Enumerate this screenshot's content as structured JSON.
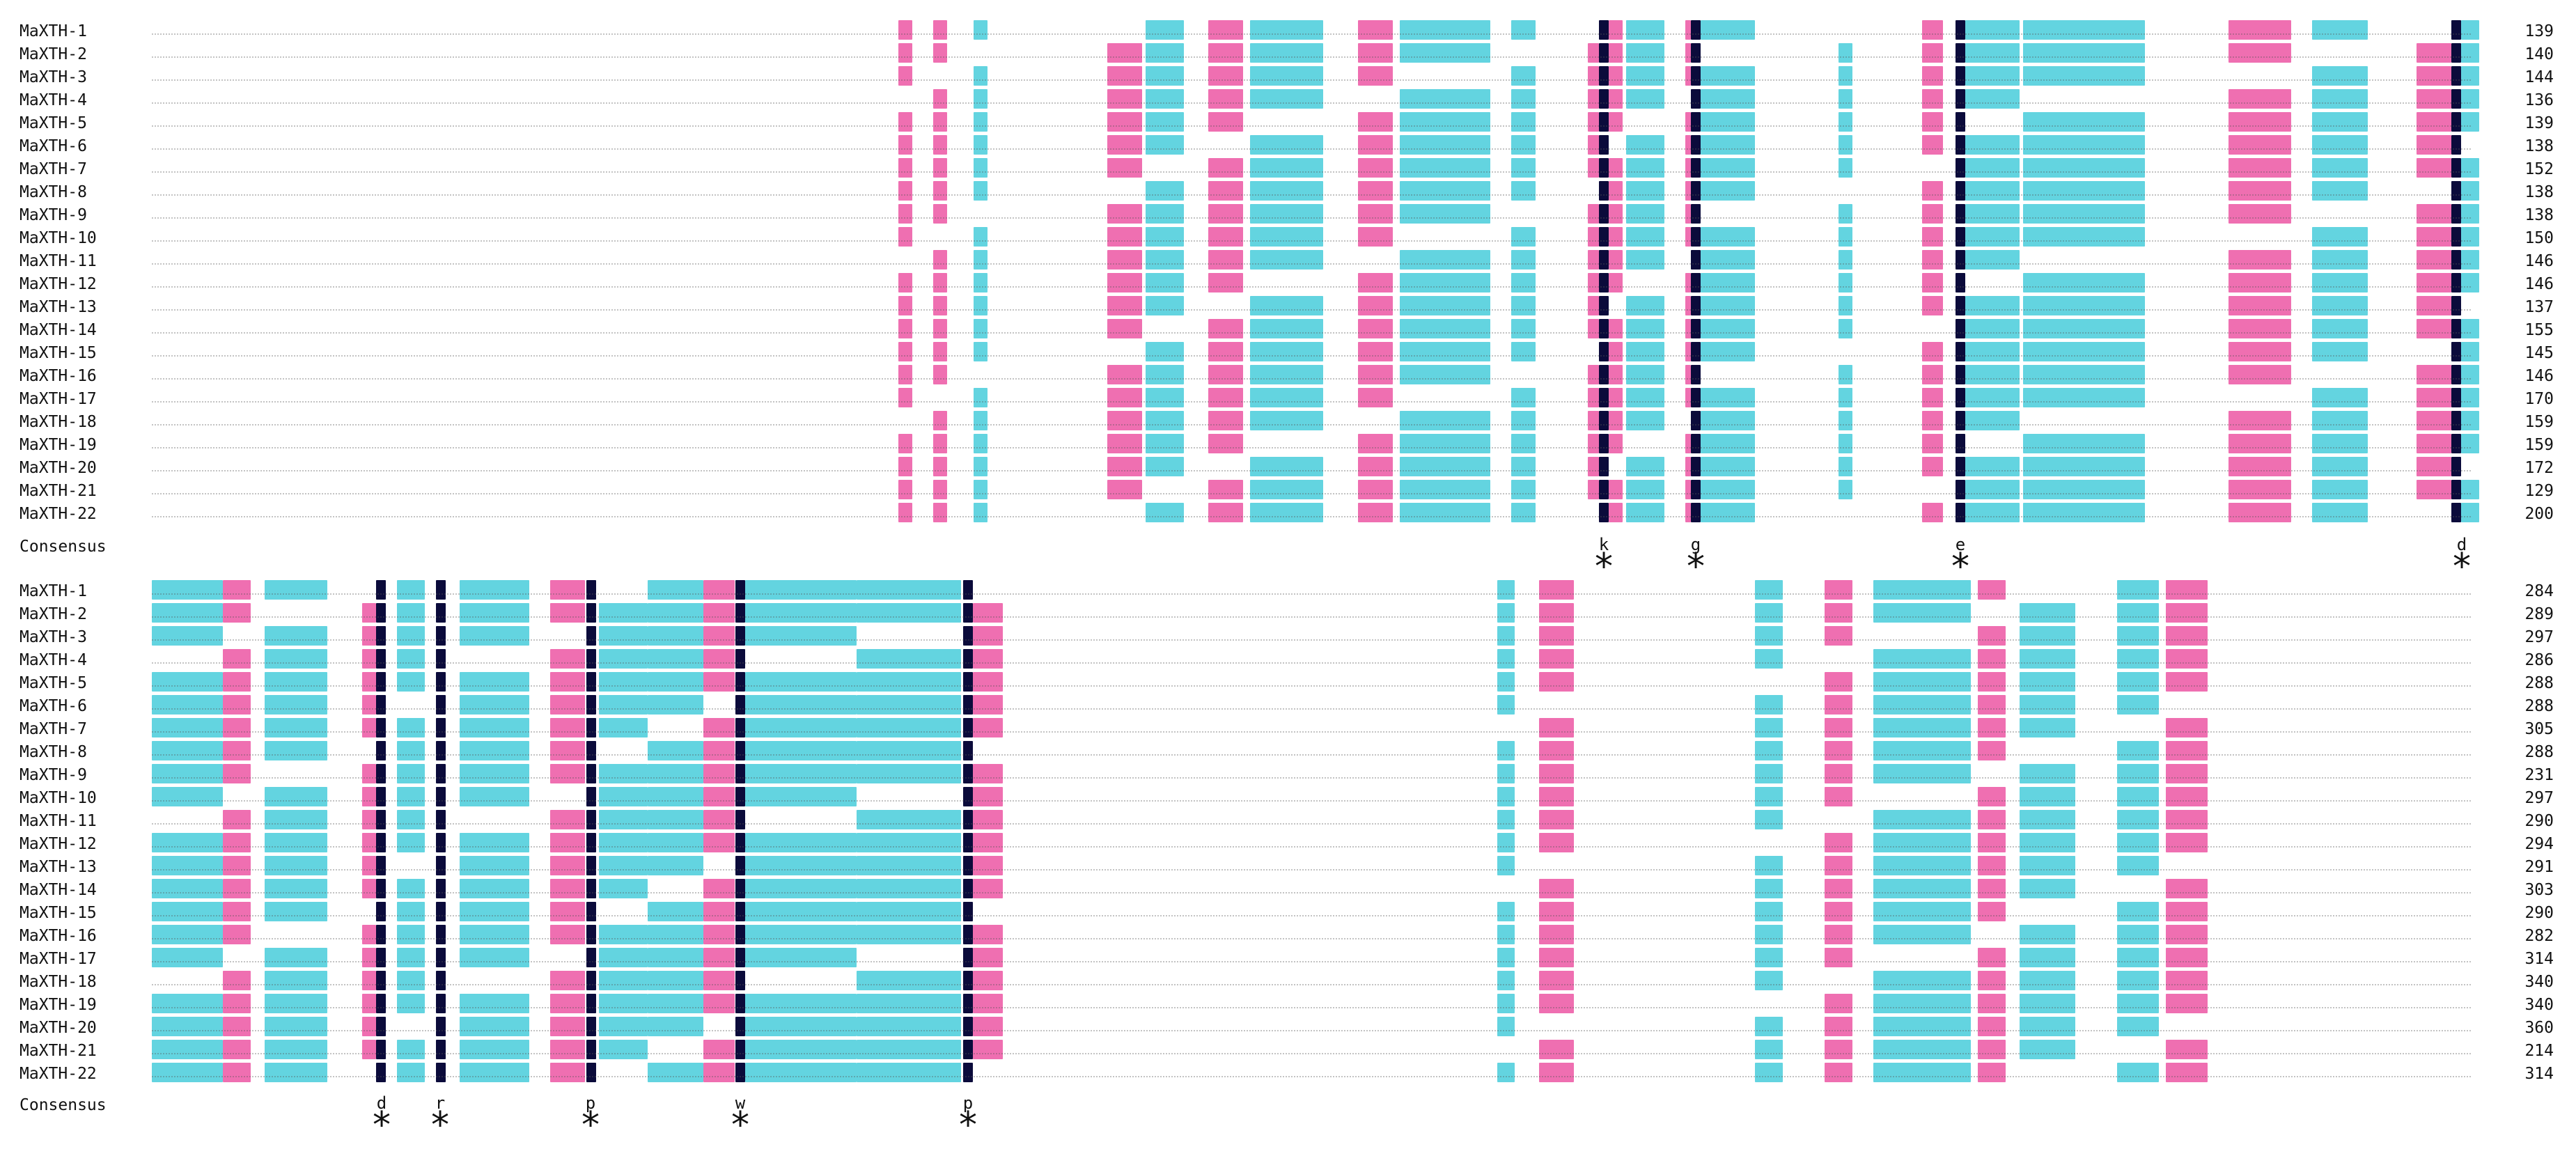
{
  "legend_colors": {
    "identical": "#0b0b3b",
    "high": "#ef6fb1",
    "medium": "#63d4e0"
  },
  "block1": {
    "names": [
      "MaXTH-1",
      "MaXTH-2",
      "MaXTH-3",
      "MaXTH-4",
      "MaXTH-5",
      "MaXTH-6",
      "MaXTH-7",
      "MaXTH-8",
      "MaXTH-9",
      "MaXTH-10",
      "MaXTH-11",
      "MaXTH-12",
      "MaXTH-13",
      "MaXTH-14",
      "MaXTH-15",
      "MaXTH-16",
      "MaXTH-17",
      "MaXTH-18",
      "MaXTH-19",
      "MaXTH-20",
      "MaXTH-21",
      "MaXTH-22"
    ],
    "counts": [
      "139",
      "140",
      "144",
      "136",
      "139",
      "138",
      "152",
      "138",
      "138",
      "150",
      "146",
      "146",
      "137",
      "155",
      "145",
      "146",
      "170",
      "159",
      "159",
      "172",
      "129",
      "200"
    ],
    "consensus_label": "Consensus",
    "consensus_marks": [
      {
        "char": "k",
        "star": "*"
      },
      {
        "char": "g",
        "star": "*"
      },
      {
        "char": "e",
        "star": "*"
      },
      {
        "char": "d",
        "star": "*"
      }
    ]
  },
  "block2": {
    "names": [
      "MaXTH-1",
      "MaXTH-2",
      "MaXTH-3",
      "MaXTH-4",
      "MaXTH-5",
      "MaXTH-6",
      "MaXTH-7",
      "MaXTH-8",
      "MaXTH-9",
      "MaXTH-10",
      "MaXTH-11",
      "MaXTH-12",
      "MaXTH-13",
      "MaXTH-14",
      "MaXTH-15",
      "MaXTH-16",
      "MaXTH-17",
      "MaXTH-18",
      "MaXTH-19",
      "MaXTH-20",
      "MaXTH-21",
      "MaXTH-22"
    ],
    "counts": [
      "284",
      "289",
      "297",
      "286",
      "288",
      "288",
      "305",
      "288",
      "231",
      "297",
      "290",
      "294",
      "291",
      "303",
      "290",
      "282",
      "314",
      "340",
      "340",
      "360",
      "214",
      "314"
    ],
    "consensus_label": "Consensus",
    "consensus_marks": [
      {
        "char": "d",
        "star": "*"
      },
      {
        "char": "r",
        "star": "*"
      },
      {
        "char": "p",
        "star": "*"
      },
      {
        "char": "w",
        "star": "*"
      },
      {
        "char": "p",
        "star": "*"
      }
    ]
  }
}
